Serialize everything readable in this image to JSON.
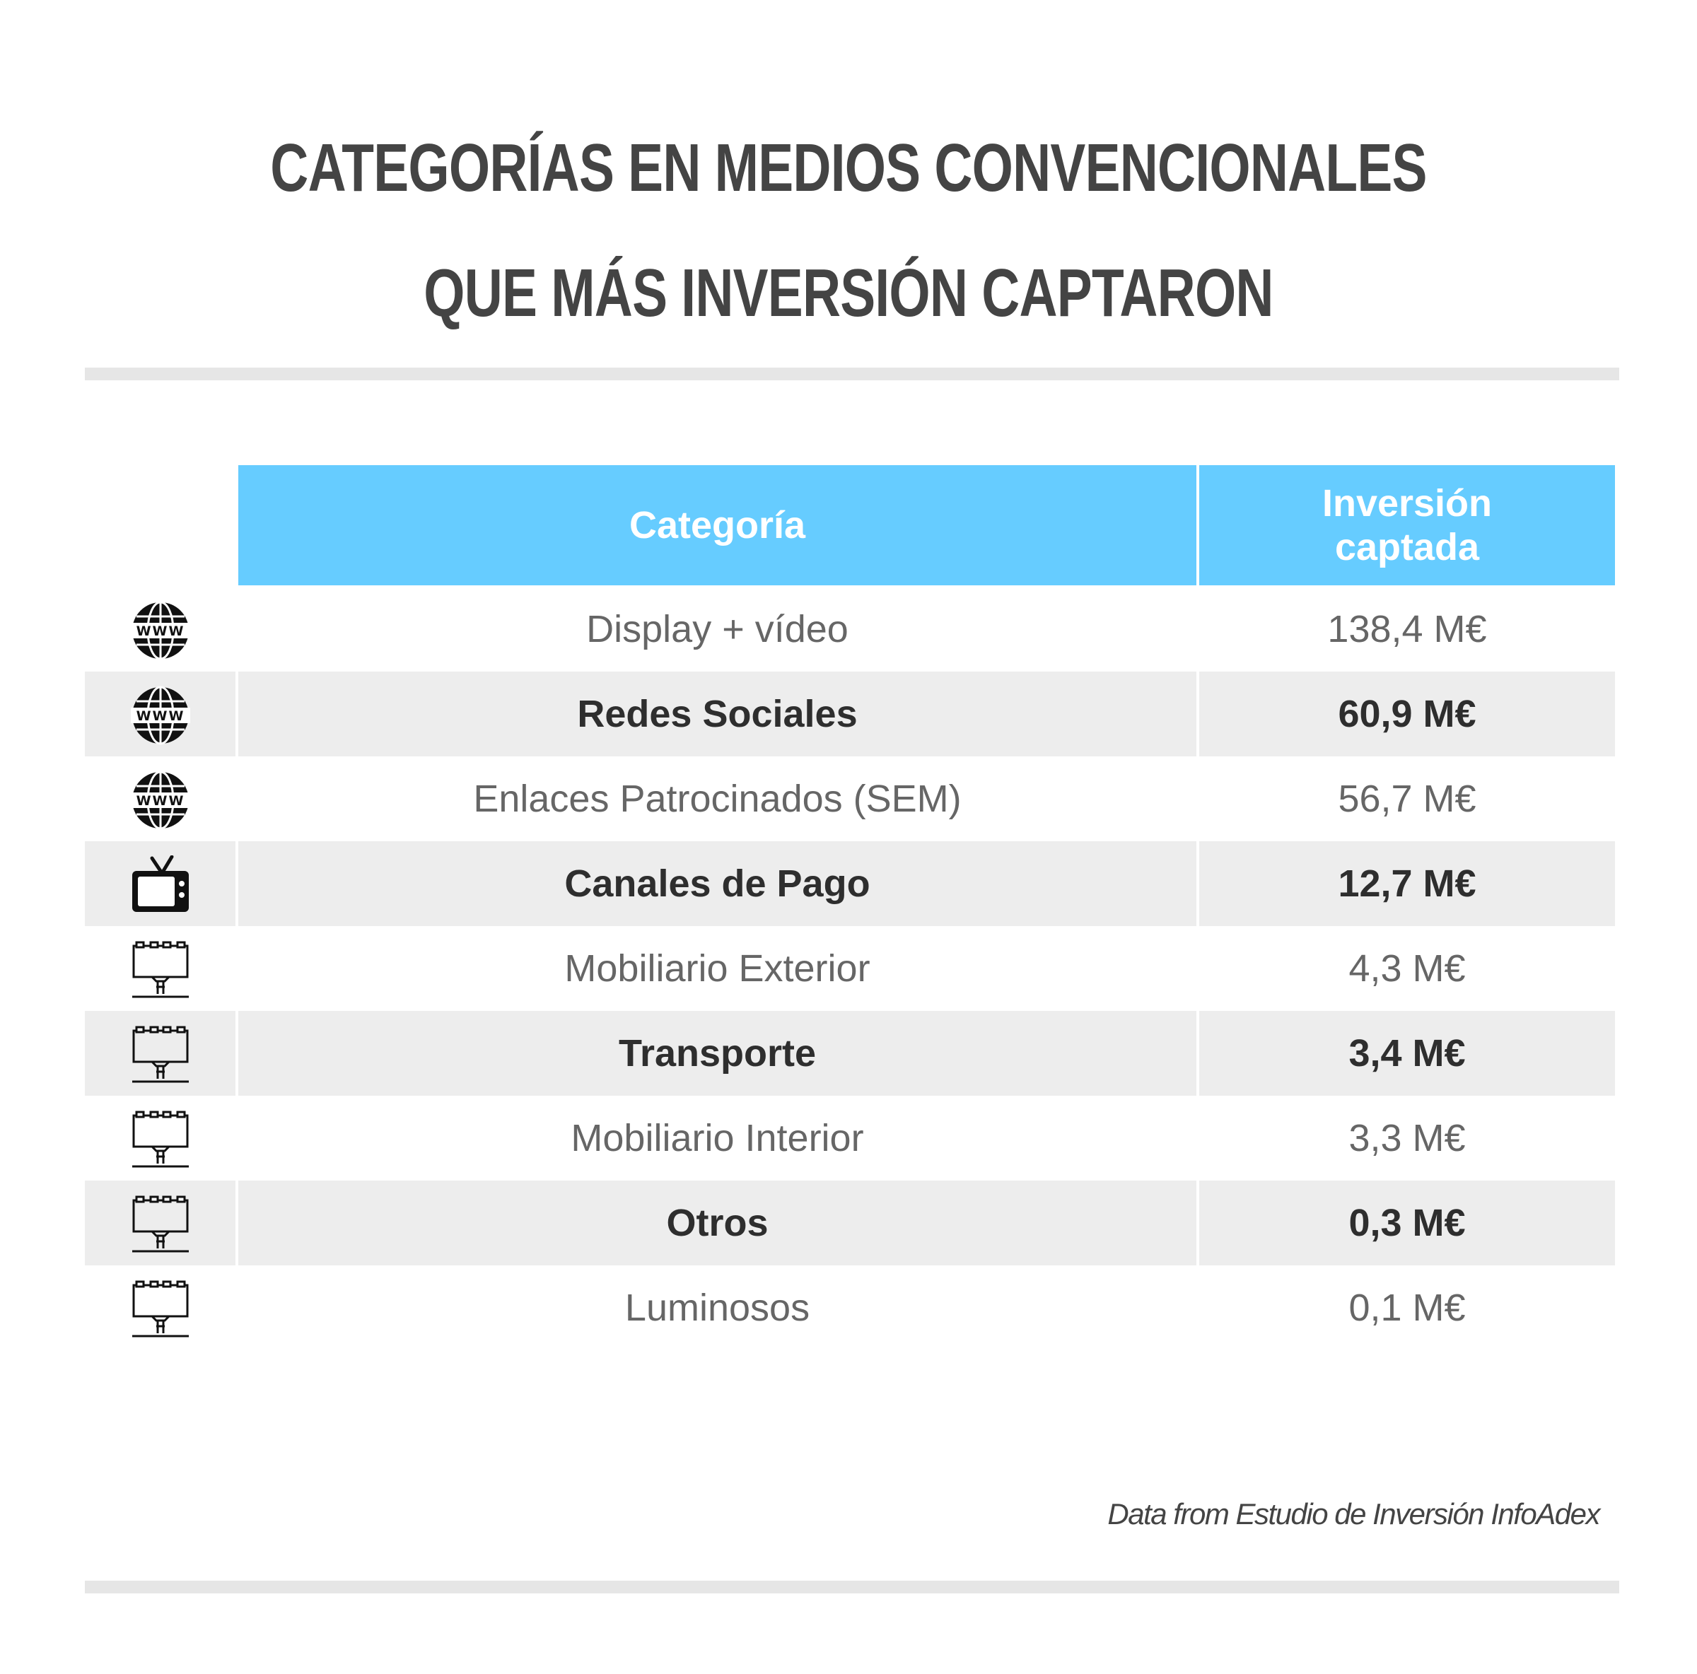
{
  "title": {
    "line1": "CATEGORÍAS EN MEDIOS CONVENCIONALES",
    "line2": "QUE MÁS INVERSIÓN CAPTARON"
  },
  "colors": {
    "header_bg": "#66CCFF",
    "row_shade": "#EDEDED",
    "divider": "#E6E6E6",
    "title_text": "#444444"
  },
  "chart_data": {
    "type": "table",
    "columns": [
      "",
      "Categoría",
      "Inversión captada"
    ],
    "header": {
      "category": "Categoría",
      "investment": "Inversión captada"
    },
    "rows": [
      {
        "icon": "globe-www-icon",
        "category": "Display + vídeo",
        "value": "138,4 M€"
      },
      {
        "icon": "globe-www-icon",
        "category": "Redes Sociales",
        "value": "60,9 M€"
      },
      {
        "icon": "globe-www-icon",
        "category": "Enlaces Patrocinados (SEM)",
        "value": "56,7 M€"
      },
      {
        "icon": "television-icon",
        "category": "Canales de Pago",
        "value": "12,7 M€"
      },
      {
        "icon": "billboard-icon",
        "category": "Mobiliario Exterior",
        "value": "4,3 M€"
      },
      {
        "icon": "billboard-icon",
        "category": "Transporte",
        "value": "3,4 M€"
      },
      {
        "icon": "billboard-icon",
        "category": "Mobiliario Interior",
        "value": "3,3 M€"
      },
      {
        "icon": "billboard-icon",
        "category": "Otros",
        "value": "0,3 M€"
      },
      {
        "icon": "billboard-icon",
        "category": "Luminosos",
        "value": "0,1 M€"
      }
    ]
  },
  "source_note": "Data from Estudio de Inversión InfoAdex"
}
